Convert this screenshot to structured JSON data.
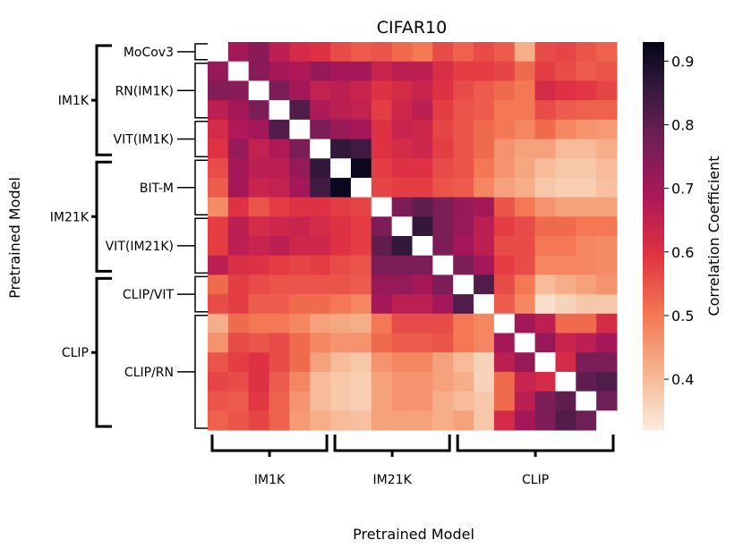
{
  "chart_data": {
    "type": "heatmap",
    "title": "CIFAR10",
    "xlabel": "Pretrained Model",
    "ylabel": "Pretrained Model",
    "colorbar": {
      "label": "Correlation Coefficient",
      "range": [
        0.32,
        0.93
      ],
      "ticks": [
        "0.4",
        "0.5",
        "0.6",
        "0.7",
        "0.8",
        "0.9"
      ],
      "tick_values": [
        0.4,
        0.5,
        0.6,
        0.7,
        0.8,
        0.9
      ]
    },
    "matrix_size": 20,
    "groups": [
      {
        "name": "IM1K",
        "start": 0,
        "end": 6
      },
      {
        "name": "IM21K",
        "start": 6,
        "end": 12
      },
      {
        "name": "CLIP",
        "start": 12,
        "end": 20
      }
    ],
    "subgroups": [
      {
        "name": "MoCov3",
        "start": 0,
        "end": 1
      },
      {
        "name": "RN(IM1K)",
        "start": 1,
        "end": 4
      },
      {
        "name": "VIT(IM1K)",
        "start": 4,
        "end": 6
      },
      {
        "name": "BIT-M",
        "start": 6,
        "end": 9
      },
      {
        "name": "VIT(IM21K)",
        "start": 9,
        "end": 12
      },
      {
        "name": "CLIP/VIT",
        "start": 12,
        "end": 14
      },
      {
        "name": "CLIP/RN",
        "start": 14,
        "end": 20
      }
    ],
    "values": [
      [
        null,
        0.7,
        0.74,
        0.66,
        0.62,
        0.6,
        0.56,
        0.54,
        0.55,
        0.52,
        0.5,
        0.56,
        0.53,
        0.56,
        0.54,
        0.42,
        0.56,
        0.57,
        0.55,
        0.53
      ],
      [
        0.72,
        null,
        0.74,
        0.7,
        0.68,
        0.72,
        0.7,
        0.7,
        0.64,
        0.66,
        0.66,
        0.61,
        0.58,
        0.58,
        0.57,
        0.52,
        0.58,
        0.56,
        0.54,
        0.55
      ],
      [
        0.75,
        0.74,
        null,
        0.76,
        0.7,
        0.65,
        0.66,
        0.64,
        0.6,
        0.62,
        0.64,
        0.6,
        0.56,
        0.54,
        0.52,
        0.5,
        0.62,
        0.6,
        0.59,
        0.57
      ],
      [
        0.66,
        0.7,
        0.76,
        null,
        0.82,
        0.68,
        0.66,
        0.65,
        0.58,
        0.63,
        0.66,
        0.58,
        0.55,
        0.54,
        0.5,
        0.5,
        0.56,
        0.54,
        0.53,
        0.53
      ],
      [
        0.62,
        0.68,
        0.7,
        0.82,
        null,
        0.76,
        0.72,
        0.7,
        0.6,
        0.64,
        0.63,
        0.57,
        0.55,
        0.52,
        0.5,
        0.48,
        0.52,
        0.48,
        0.46,
        0.45
      ],
      [
        0.6,
        0.72,
        0.65,
        0.68,
        0.76,
        null,
        0.86,
        0.84,
        0.6,
        0.62,
        0.63,
        0.58,
        0.55,
        0.52,
        0.46,
        0.44,
        0.44,
        0.4,
        0.4,
        0.42
      ],
      [
        0.56,
        0.7,
        0.66,
        0.66,
        0.72,
        0.86,
        null,
        0.92,
        0.58,
        0.6,
        0.6,
        0.56,
        0.55,
        0.5,
        0.46,
        0.43,
        0.4,
        0.38,
        0.38,
        0.4
      ],
      [
        0.54,
        0.7,
        0.64,
        0.65,
        0.7,
        0.84,
        0.92,
        null,
        0.57,
        0.58,
        0.58,
        0.55,
        0.54,
        0.48,
        0.44,
        0.42,
        0.38,
        0.37,
        0.37,
        0.39
      ],
      [
        0.47,
        0.6,
        0.55,
        0.58,
        0.6,
        0.6,
        0.58,
        0.57,
        null,
        0.76,
        0.8,
        0.76,
        0.72,
        0.7,
        0.55,
        0.5,
        0.46,
        0.44,
        0.44,
        0.44
      ],
      [
        0.58,
        0.66,
        0.62,
        0.63,
        0.64,
        0.62,
        0.6,
        0.58,
        0.76,
        null,
        0.86,
        0.76,
        0.72,
        0.66,
        0.58,
        0.56,
        0.52,
        0.52,
        0.5,
        0.5
      ],
      [
        0.58,
        0.66,
        0.64,
        0.66,
        0.63,
        0.63,
        0.6,
        0.58,
        0.8,
        0.86,
        null,
        0.76,
        0.7,
        0.66,
        0.56,
        0.56,
        0.5,
        0.5,
        0.48,
        0.47
      ],
      [
        0.66,
        0.61,
        0.6,
        0.58,
        0.57,
        0.58,
        0.56,
        0.55,
        0.76,
        0.76,
        0.76,
        null,
        0.76,
        0.7,
        0.58,
        0.56,
        0.48,
        0.48,
        0.48,
        0.47
      ],
      [
        0.52,
        0.58,
        0.56,
        0.55,
        0.55,
        0.55,
        0.55,
        0.54,
        0.72,
        0.72,
        0.7,
        0.76,
        null,
        0.82,
        0.56,
        0.5,
        0.4,
        0.42,
        0.44,
        0.46
      ],
      [
        0.56,
        0.58,
        0.54,
        0.54,
        0.52,
        0.52,
        0.5,
        0.48,
        0.7,
        0.66,
        0.66,
        0.7,
        0.82,
        null,
        0.54,
        0.48,
        0.34,
        0.36,
        0.38,
        0.38
      ],
      [
        0.42,
        0.52,
        0.5,
        0.5,
        0.48,
        0.44,
        0.43,
        0.42,
        0.5,
        0.56,
        0.56,
        0.56,
        0.5,
        0.48,
        null,
        0.7,
        0.66,
        0.52,
        0.52,
        0.62
      ],
      [
        0.46,
        0.56,
        0.55,
        0.56,
        0.52,
        0.48,
        0.46,
        0.46,
        0.52,
        0.54,
        0.54,
        0.55,
        0.5,
        0.48,
        0.7,
        null,
        0.72,
        0.64,
        0.66,
        0.7
      ],
      [
        0.55,
        0.58,
        0.6,
        0.56,
        0.52,
        0.44,
        0.4,
        0.38,
        0.46,
        0.48,
        0.48,
        0.44,
        0.4,
        0.36,
        0.66,
        0.72,
        null,
        0.62,
        0.76,
        0.76
      ],
      [
        0.57,
        0.56,
        0.6,
        0.54,
        0.48,
        0.4,
        0.38,
        0.37,
        0.44,
        0.46,
        0.46,
        0.44,
        0.42,
        0.36,
        0.52,
        0.64,
        0.62,
        null,
        0.8,
        0.82
      ],
      [
        0.55,
        0.54,
        0.59,
        0.53,
        0.46,
        0.4,
        0.38,
        0.37,
        0.44,
        0.46,
        0.46,
        0.42,
        0.4,
        0.38,
        0.52,
        0.66,
        0.76,
        0.8,
        null,
        0.78
      ],
      [
        0.53,
        0.55,
        0.57,
        0.53,
        0.45,
        0.42,
        0.4,
        0.39,
        0.44,
        0.44,
        0.44,
        0.42,
        0.44,
        0.38,
        0.62,
        0.7,
        0.76,
        0.82,
        0.78,
        null
      ]
    ]
  }
}
